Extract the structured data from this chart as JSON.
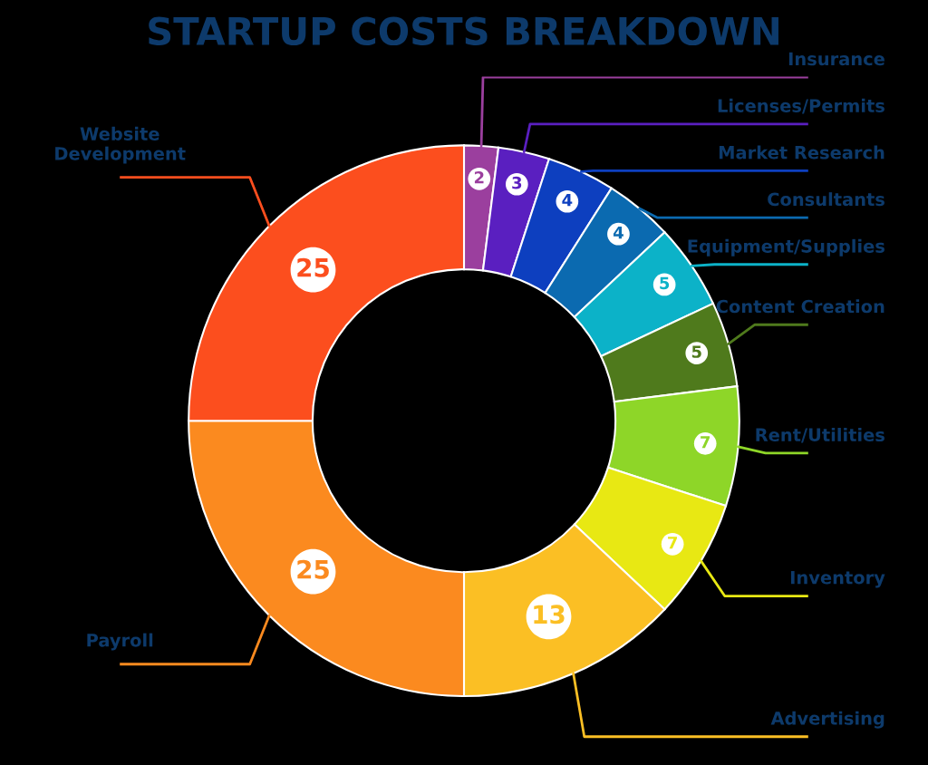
{
  "chart_data": {
    "type": "donut",
    "title": "STARTUP COSTS BREAKDOWN",
    "categories": [
      "Insurance",
      "Licenses/Permits",
      "Market Research",
      "Consultants",
      "Equipment/Supplies",
      "Content Creation",
      "Rent/Utilities",
      "Inventory",
      "Advertising",
      "Payroll",
      "Website\nDevelopment"
    ],
    "values": [
      2,
      3,
      4,
      4,
      5,
      5,
      7,
      7,
      13,
      25,
      25
    ],
    "colors": [
      "#9b3f9e",
      "#5a1fc0",
      "#0d3fbf",
      "#0b6ab0",
      "#0cb2c8",
      "#4f7a1c",
      "#8ed628",
      "#e8e813",
      "#fbbf24",
      "#fb8a1f",
      "#fc4e1e"
    ],
    "data_labels": true
  }
}
